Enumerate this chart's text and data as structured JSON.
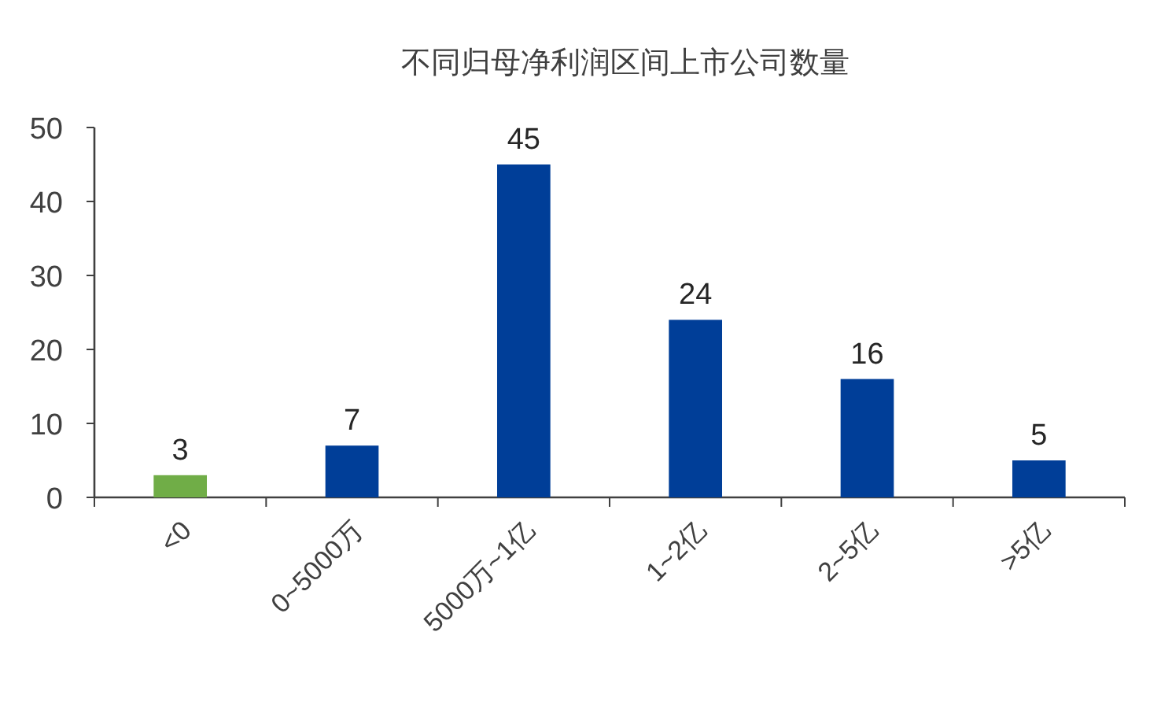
{
  "chart_data": {
    "type": "bar",
    "title": "不同归母净利润区间上市公司数量",
    "categories": [
      "<0",
      "0~5000万",
      "5000万~1亿",
      "1~2亿",
      "2~5亿",
      ">5亿"
    ],
    "values": [
      3,
      7,
      45,
      24,
      16,
      5
    ],
    "colors": [
      "#70ad47",
      "#003e98",
      "#003e98",
      "#003e98",
      "#003e98",
      "#003e98"
    ],
    "ylim": [
      0,
      50
    ],
    "yticks": [
      0,
      10,
      20,
      30,
      40,
      50
    ],
    "data_labels": true
  }
}
